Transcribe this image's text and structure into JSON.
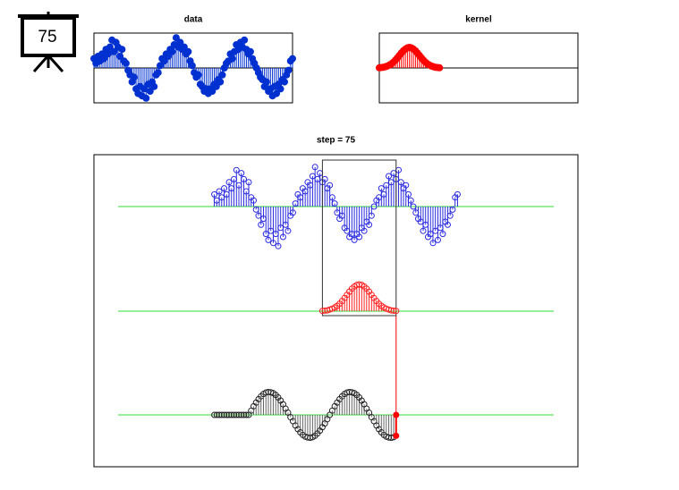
{
  "badge": "75",
  "chart_data": [
    {
      "type": "stem",
      "title": "data",
      "color": "#0030d0",
      "filled": true,
      "xlim": [
        0,
        99
      ],
      "ylim": [
        -1.5,
        1.5
      ],
      "values": [
        0.4,
        0.2,
        0.5,
        0.3,
        0.6,
        0.4,
        0.8,
        0.6,
        0.9,
        1.2,
        0.7,
        1.1,
        0.9,
        0.5,
        0.8,
        0.3,
        0.2,
        -0.1,
        -0.3,
        -0.6,
        -0.4,
        -0.9,
        -1.1,
        -0.8,
        -1.2,
        -0.9,
        -1.3,
        -0.7,
        -1.0,
        -0.6,
        -0.8,
        -0.3,
        -0.2,
        0.1,
        0.4,
        0.3,
        0.6,
        0.5,
        0.8,
        0.7,
        1.0,
        1.3,
        0.9,
        1.1,
        0.8,
        0.9,
        0.6,
        0.7,
        0.3,
        0.1,
        -0.2,
        -0.4,
        -0.3,
        -0.7,
        -0.8,
        -1.0,
        -0.9,
        -1.1,
        -0.9,
        -1.0,
        -0.7,
        -0.8,
        -0.5,
        -0.6,
        -0.3,
        0.0,
        0.2,
        0.3,
        0.6,
        0.4,
        0.7,
        1.0,
        0.8,
        1.1,
        0.9,
        1.2,
        0.8,
        0.6,
        0.7,
        0.4,
        0.2,
        0.0,
        -0.2,
        -0.4,
        -0.5,
        -0.8,
        -0.6,
        -1.0,
        -0.9,
        -1.2,
        -0.8,
        -1.1,
        -0.7,
        -0.9,
        -0.5,
        -0.6,
        -0.3,
        -0.1,
        0.3,
        0.4
      ]
    },
    {
      "type": "stem",
      "title": "kernel",
      "color": "#ff0000",
      "filled": true,
      "xlim": [
        0,
        99
      ],
      "ylim": [
        -1.7,
        1.7
      ],
      "values": [
        0.01,
        0.02,
        0.03,
        0.06,
        0.09,
        0.14,
        0.2,
        0.28,
        0.38,
        0.49,
        0.61,
        0.73,
        0.84,
        0.92,
        0.98,
        1,
        0.98,
        0.92,
        0.84,
        0.73,
        0.61,
        0.49,
        0.38,
        0.28,
        0.2,
        0.14,
        0.09,
        0.06,
        0.03,
        0.02,
        0.01
      ]
    },
    {
      "type": "convolution",
      "title": "step = 75",
      "step": 75,
      "xlim": [
        -49,
        148
      ],
      "data_color": "#2a2ae0",
      "kernel_color": "#ff2020",
      "output_color": "#222222",
      "baseline_color": "#33dd33",
      "current_color": "#ff0000",
      "values": [
        0,
        0,
        0,
        0,
        0,
        0,
        0,
        0,
        0,
        0,
        0,
        0,
        0,
        0,
        0,
        1.5,
        3.0,
        4.3,
        5.5,
        6.5,
        7.3,
        7.8,
        8.0,
        7.9,
        7.6,
        7.0,
        6.1,
        5.0,
        3.7,
        2.2,
        0.8,
        -0.8,
        -2.2,
        -3.7,
        -5.0,
        -6.1,
        -7.0,
        -7.6,
        -7.9,
        -8.0,
        -7.8,
        -7.3,
        -6.5,
        -5.5,
        -4.3,
        -3.0,
        -1.5,
        0,
        1.5,
        3.0,
        4.3,
        5.5,
        6.5,
        7.3,
        7.8,
        8.0,
        7.9,
        7.6,
        7.0,
        6.1,
        5.0,
        3.7,
        2.2,
        0.8,
        -0.8,
        -2.2,
        -3.7,
        -5.0,
        -6.1,
        -7.0,
        -7.6,
        -7.9,
        -8.0,
        -7.8,
        -7.3
      ]
    }
  ]
}
